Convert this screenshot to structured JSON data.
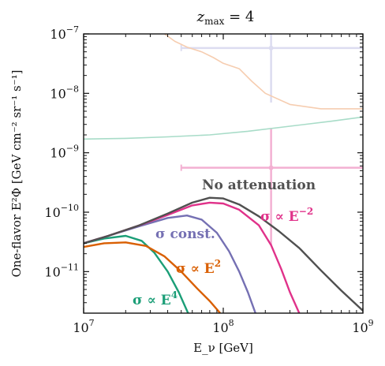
{
  "chart_data": {
    "type": "line",
    "title": "z_max = 4",
    "xlabel": "E_ν [GeV]",
    "ylabel": "One-flavor E²Φ [GeV cm⁻² sr⁻¹ s⁻¹]",
    "xscale": "log",
    "yscale": "log",
    "xlim": [
      10000000,
      1000000000
    ],
    "ylim": [
      2e-12,
      1e-07
    ],
    "grid": false,
    "x_ticks": [
      {
        "value": 10000000,
        "base": "10",
        "exp": "7"
      },
      {
        "value": 100000000,
        "base": "10",
        "exp": "8"
      },
      {
        "value": 1000000000,
        "base": "10",
        "exp": "9"
      }
    ],
    "y_ticks": [
      {
        "value": 1e-07,
        "base": "10",
        "exp": "−7"
      },
      {
        "value": 1e-08,
        "base": "10",
        "exp": "−8"
      },
      {
        "value": 1e-09,
        "base": "10",
        "exp": "−9"
      },
      {
        "value": 1e-10,
        "base": "10",
        "exp": "−10"
      },
      {
        "value": 1e-11,
        "base": "10",
        "exp": "−11"
      }
    ],
    "series": [
      {
        "name": "No attenuation",
        "color": "#505050",
        "x": [
          10000000,
          15000000,
          25000000,
          40000000,
          60000000,
          80000000,
          100000000,
          130000000,
          180000000,
          250000000,
          350000000,
          500000000,
          700000000,
          1000000000
        ],
        "y": [
          3e-11,
          4e-11,
          6e-11,
          9.5e-11,
          1.45e-10,
          1.75e-10,
          1.7e-10,
          1.35e-10,
          8.5e-11,
          4.8e-11,
          2.5e-11,
          1.05e-11,
          4.8e-12,
          2.2e-12
        ]
      },
      {
        "name": "σ ∝ E⁻²",
        "color": "#e0328a",
        "x": [
          10000000,
          15000000,
          25000000,
          40000000,
          60000000,
          80000000,
          100000000,
          130000000,
          180000000,
          220000000,
          260000000,
          300000000,
          350000000
        ],
        "y": [
          3e-11,
          4e-11,
          6e-11,
          9e-11,
          1.3e-10,
          1.45e-10,
          1.4e-10,
          1.1e-10,
          6e-11,
          2.8e-11,
          1.1e-11,
          4.5e-12,
          2e-12
        ]
      },
      {
        "name": "σ const.",
        "color": "#7570b3",
        "x": [
          10000000,
          15000000,
          25000000,
          40000000,
          55000000,
          70000000,
          90000000,
          110000000,
          130000000,
          150000000,
          170000000
        ],
        "y": [
          3e-11,
          4e-11,
          5.8e-11,
          8e-11,
          8.8e-11,
          7.5e-11,
          4.5e-11,
          2.2e-11,
          1e-11,
          4.5e-12,
          2e-12
        ]
      },
      {
        "name": "σ ∝ E²",
        "color": "#d95f02",
        "x": [
          10000000,
          14000000,
          20000000,
          28000000,
          38000000,
          50000000,
          65000000,
          80000000,
          95000000
        ],
        "y": [
          2.6e-11,
          3e-11,
          3.1e-11,
          2.7e-11,
          1.8e-11,
          1e-11,
          5.2e-12,
          3.2e-12,
          2e-12
        ]
      },
      {
        "name": "σ ∝ E⁴",
        "color": "#1b9e77",
        "x": [
          10000000,
          14000000,
          20000000,
          26000000,
          32000000,
          40000000,
          48000000,
          56000000
        ],
        "y": [
          3e-11,
          3.6e-11,
          4e-11,
          3.3e-11,
          2.1e-11,
          1e-11,
          4.5e-12,
          2e-12
        ]
      },
      {
        "name": "",
        "color": "#a8dcc8",
        "x": [
          10000000,
          20000000,
          40000000,
          80000000,
          150000000,
          300000000,
          600000000,
          1000000000
        ],
        "y": [
          1.7e-09,
          1.75e-09,
          1.85e-09,
          2e-09,
          2.3e-09,
          2.8e-09,
          3.4e-09,
          4e-09
        ]
      },
      {
        "name": "",
        "color": "#f6cdb0",
        "x": [
          38000000,
          45000000,
          55000000,
          70000000,
          85000000,
          100000000,
          130000000,
          160000000,
          200000000,
          300000000,
          500000000,
          700000000,
          1000000000
        ],
        "y": [
          1e-07,
          7.5e-08,
          6e-08,
          5e-08,
          4e-08,
          3.2e-08,
          2.6e-08,
          1.6e-08,
          1e-08,
          6.5e-09,
          5.5e-09,
          5.5e-09,
          5.5e-09
        ]
      }
    ],
    "error_bars": [
      {
        "color": "#dcdcf0",
        "x": 220000000,
        "y": 5.8e-08,
        "xerr": [
          50000000,
          1000000000
        ],
        "yerr": [
          7e-09,
          1e-07
        ]
      },
      {
        "color": "#f3b0d2",
        "x": 220000000,
        "y": 5.6e-10,
        "xerr": [
          50000000,
          1000000000
        ],
        "yerr": [
          2.8e-11,
          2.6e-09
        ]
      }
    ],
    "annotations": [
      {
        "text": "No attenuation",
        "series": 0
      },
      {
        "text_main": "σ ∝ E",
        "sup": "−2",
        "series": 1
      },
      {
        "text_main": "σ const.",
        "sup": "",
        "series": 2
      },
      {
        "text_main": "σ ∝ E",
        "sup": "2",
        "series": 3
      },
      {
        "text_main": "σ ∝ E",
        "sup": "4",
        "series": 4
      }
    ]
  }
}
